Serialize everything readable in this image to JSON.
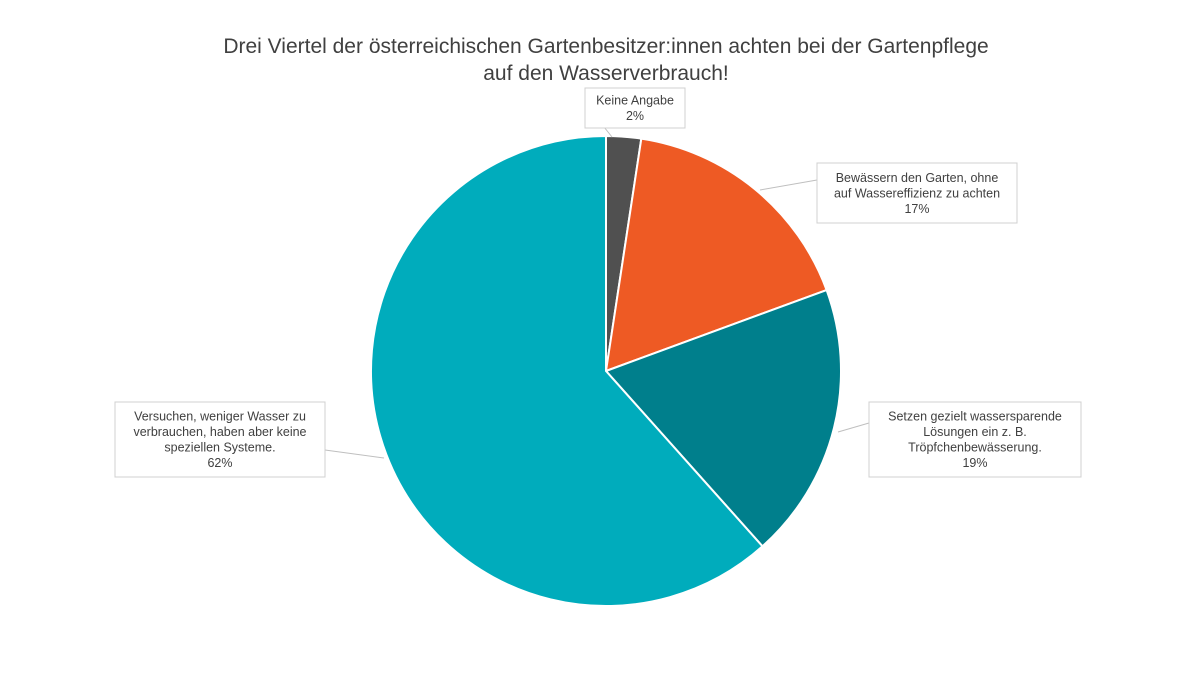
{
  "chart_data": {
    "type": "pie",
    "title_lines": [
      "Drei Viertel der österreichischen Gartenbesitzer:innen achten bei der Gartenpflege",
      "auf den Wasserverbrauch!"
    ],
    "start_angle_deg": 0,
    "direction": "clockwise",
    "slices": [
      {
        "category": "Keine Angabe",
        "value": 2.4,
        "label_lines": [
          "Keine Angabe"
        ],
        "value_label": "2%",
        "color": "#505050"
      },
      {
        "category": "Bewässern den Garten, ohne auf Wassereffizienz zu achten",
        "value": 17,
        "label_lines": [
          "Bewässern den Garten, ohne",
          "auf Wassereffizienz zu achten"
        ],
        "value_label": "17%",
        "color": "#EE5A24"
      },
      {
        "category": "Setzen gezielt wassersparende Lösungen ein z. B. Tröpfchenbewässerung.",
        "value": 19,
        "label_lines": [
          "Setzen gezielt wassersparende",
          "Lösungen ein z. B.",
          "Tröpfchenbewässerung."
        ],
        "value_label": "19%",
        "color": "#007F8C"
      },
      {
        "category": "Versuchen, weniger Wasser zu verbrauchen, haben aber keine speziellen Systeme.",
        "value": 61.6,
        "label_lines": [
          "Versuchen, weniger Wasser zu",
          "verbrauchen, haben aber keine",
          "speziellen Systeme."
        ],
        "value_label": "62%",
        "color": "#00ACBC"
      }
    ]
  }
}
